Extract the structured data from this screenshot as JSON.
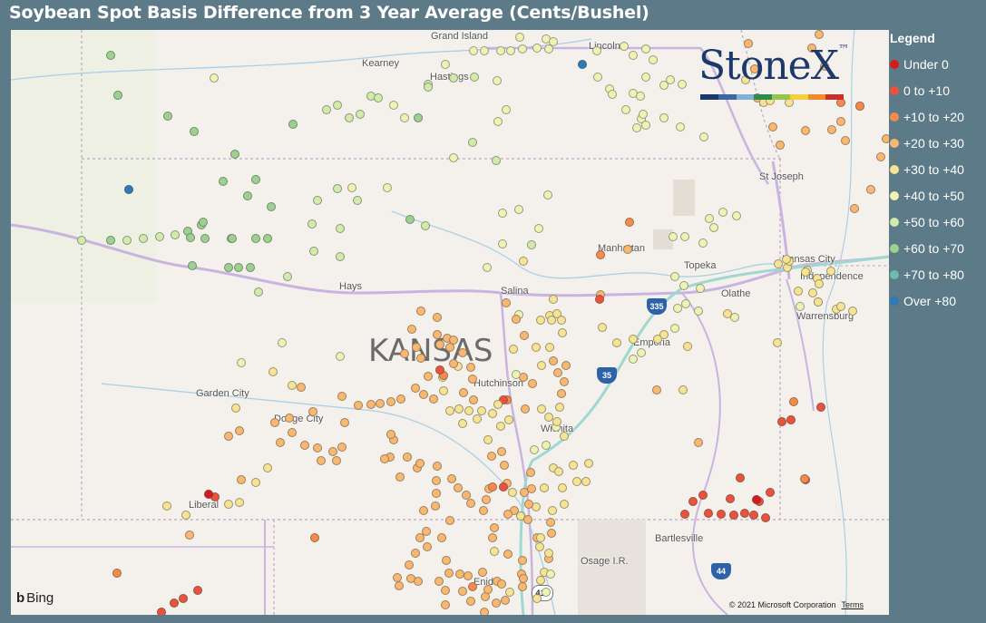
{
  "title": "Soybean Spot Basis Difference from 3 Year Average (Cents/Bushel)",
  "legend": {
    "title": "Legend",
    "items": [
      {
        "label": "Under 0",
        "color": "#d7191c"
      },
      {
        "label": "0 to +10",
        "color": "#e9533a"
      },
      {
        "label": "+10 to +20",
        "color": "#f58a4b"
      },
      {
        "label": "+20 to +30",
        "color": "#f9b770"
      },
      {
        "label": "+30 to +40",
        "color": "#f6e393"
      },
      {
        "label": "+40 to +50",
        "color": "#eef3b3"
      },
      {
        "label": "+50 to +60",
        "color": "#d2ebaa"
      },
      {
        "label": "+60 to +70",
        "color": "#9dd18f"
      },
      {
        "label": "+70 to +80",
        "color": "#6fbcaa"
      },
      {
        "label": "Over +80",
        "color": "#2c7bb6"
      }
    ]
  },
  "logo": {
    "text": "StoneX",
    "tm": "™"
  },
  "map": {
    "state_label": "KANSAS",
    "cities": [
      {
        "name": "Grand Island"
      },
      {
        "name": "Kearney"
      },
      {
        "name": "Hastings"
      },
      {
        "name": "Lincoln"
      },
      {
        "name": "St Joseph"
      },
      {
        "name": "Manhattan"
      },
      {
        "name": "Topeka"
      },
      {
        "name": "Kansas City"
      },
      {
        "name": "Independence"
      },
      {
        "name": "Olathe"
      },
      {
        "name": "Warrensburg"
      },
      {
        "name": "Hays"
      },
      {
        "name": "Salina"
      },
      {
        "name": "Emporia"
      },
      {
        "name": "Garden City"
      },
      {
        "name": "Dodge City"
      },
      {
        "name": "Hutchinson"
      },
      {
        "name": "Wichita"
      },
      {
        "name": "Liberal"
      },
      {
        "name": "Bartlesville"
      },
      {
        "name": "Osage I.R."
      },
      {
        "name": "Enid"
      }
    ],
    "shields": [
      "335",
      "35",
      "44",
      "412"
    ]
  },
  "attribution": {
    "bing": "Bing",
    "copyright": "© 2021 Microsoft Corporation",
    "terms": "Terms"
  }
}
